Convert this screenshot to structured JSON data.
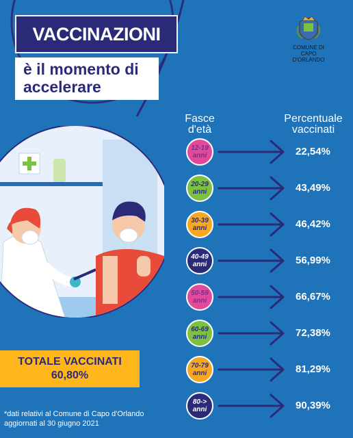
{
  "header": {
    "title": "VACCINAZIONI",
    "subtitle_line1": "è il momento di",
    "subtitle_line2": "accelerare"
  },
  "logo": {
    "line1": "COMUNE DI",
    "line2": "CAPO D'ORLANDO",
    "icon": "coat-of-arms-icon"
  },
  "columns": {
    "age_line1": "Fasce",
    "age_line2": "d'età",
    "pct_line1": "Percentuale",
    "pct_line2": "vaccinati"
  },
  "rows": [
    {
      "line1": "12-19",
      "line2": "anni",
      "value": "22,54%",
      "color": "#e3499a",
      "text_color": "#7b2d8a"
    },
    {
      "line1": "20-29",
      "line2": "anni",
      "value": "43,49%",
      "color": "#7cc242",
      "text_color": "#2b2a78"
    },
    {
      "line1": "30-39",
      "line2": "anni",
      "value": "46,42%",
      "color": "#f7a823",
      "text_color": "#2b2a78"
    },
    {
      "line1": "40-49",
      "line2": "anni",
      "value": "56,99%",
      "color": "#2b2a78",
      "text_color": "#ffffff"
    },
    {
      "line1": "50-59",
      "line2": "anni",
      "value": "66,67%",
      "color": "#e3499a",
      "text_color": "#7b2d8a"
    },
    {
      "line1": "60-69",
      "line2": "anni",
      "value": "72,38%",
      "color": "#7cc242",
      "text_color": "#2b2a78"
    },
    {
      "line1": "70-79",
      "line2": "anni",
      "value": "81,29%",
      "color": "#f7a823",
      "text_color": "#2b2a78"
    },
    {
      "line1": "80->",
      "line2": "anni",
      "value": "90,39%",
      "color": "#2b2a78",
      "text_color": "#ffffff"
    }
  ],
  "total": {
    "label": "TOTALE VACCINATI",
    "value": "60,80%"
  },
  "note": {
    "line1": "*dati relativi al Comune di Capo d'Orlando",
    "line2": "aggiornati al 30 giugno 2021"
  },
  "colors": {
    "background": "#1f73b9",
    "navy": "#2b2a78",
    "yellow": "#ffb61c"
  }
}
